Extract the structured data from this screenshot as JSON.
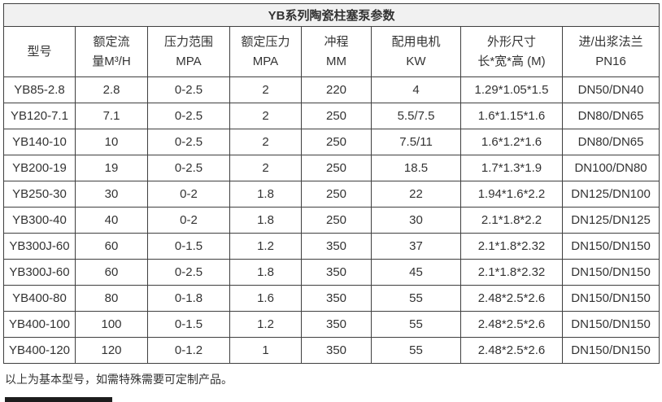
{
  "title": "YB系列陶瓷柱塞泵参数",
  "table": {
    "headers": [
      {
        "line1": "型号",
        "line2": ""
      },
      {
        "line1": "额定流",
        "line2": "量M³/H"
      },
      {
        "line1": "压力范围",
        "line2": "MPA"
      },
      {
        "line1": "额定压力",
        "line2": "MPA"
      },
      {
        "line1": "冲程",
        "line2": "MM"
      },
      {
        "line1": "配用电机",
        "line2": "KW"
      },
      {
        "line1": "外形尺寸",
        "line2": "长*宽*高 (M)"
      },
      {
        "line1": "进/出浆法兰",
        "line2": "PN16"
      }
    ],
    "rows": [
      [
        "YB85-2.8",
        "2.8",
        "0-2.5",
        "2",
        "220",
        "4",
        "1.29*1.05*1.5",
        "DN50/DN40"
      ],
      [
        "YB120-7.1",
        "7.1",
        "0-2.5",
        "2",
        "250",
        "5.5/7.5",
        "1.6*1.15*1.6",
        "DN80/DN65"
      ],
      [
        "YB140-10",
        "10",
        "0-2.5",
        "2",
        "250",
        "7.5/11",
        "1.6*1.2*1.6",
        "DN80/DN65"
      ],
      [
        "YB200-19",
        "19",
        "0-2.5",
        "2",
        "250",
        "18.5",
        "1.7*1.3*1.9",
        "DN100/DN80"
      ],
      [
        "YB250-30",
        "30",
        "0-2",
        "1.8",
        "250",
        "22",
        "1.94*1.6*2.2",
        "DN125/DN100"
      ],
      [
        "YB300-40",
        "40",
        "0-2",
        "1.8",
        "250",
        "30",
        "2.1*1.8*2.2",
        "DN125/DN125"
      ],
      [
        "YB300J-60",
        "60",
        "0-1.5",
        "1.2",
        "350",
        "37",
        "2.1*1.8*2.32",
        "DN150/DN150"
      ],
      [
        "YB300J-60",
        "60",
        "0-2.5",
        "1.8",
        "350",
        "45",
        "2.1*1.8*2.32",
        "DN150/DN150"
      ],
      [
        "YB400-80",
        "80",
        "0-1.8",
        "1.6",
        "350",
        "55",
        "2.48*2.5*2.6",
        "DN150/DN150"
      ],
      [
        "YB400-100",
        "100",
        "0-1.5",
        "1.2",
        "350",
        "55",
        "2.48*2.5*2.6",
        "DN150/DN150"
      ],
      [
        "YB400-120",
        "120",
        "0-1.2",
        "1",
        "350",
        "55",
        "2.48*2.5*2.6",
        "DN150/DN150"
      ]
    ]
  },
  "footer": "以上为基本型号，如需特殊需要可定制产品。"
}
